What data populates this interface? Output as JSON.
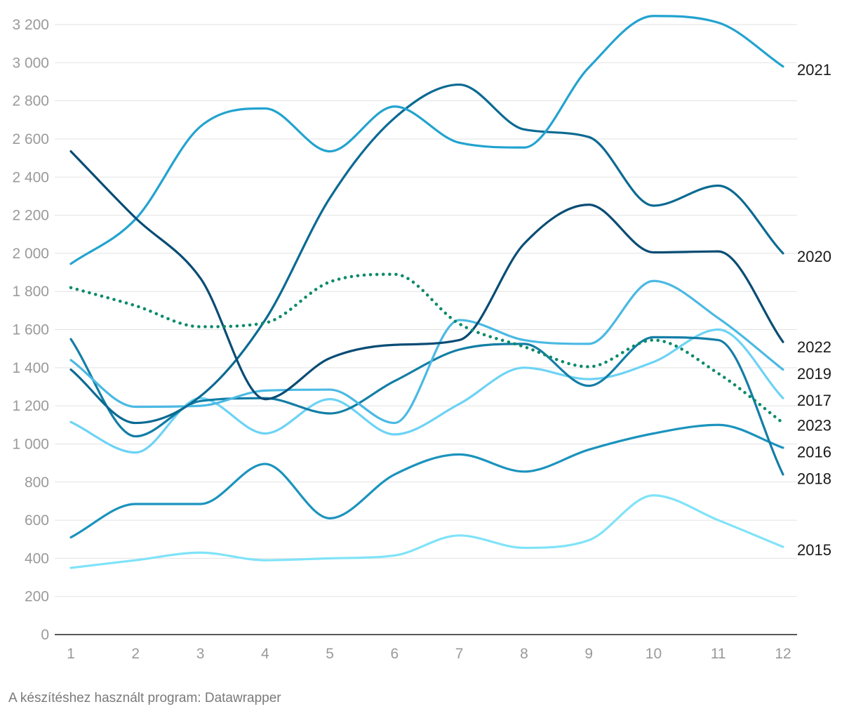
{
  "chart_data": {
    "type": "line",
    "curve": "smooth",
    "x": [
      1,
      2,
      3,
      4,
      5,
      6,
      7,
      8,
      9,
      10,
      11,
      12
    ],
    "xlim": [
      1,
      12
    ],
    "ylim": [
      0,
      3200
    ],
    "y_ticks": [
      0,
      200,
      400,
      600,
      800,
      1000,
      1200,
      1400,
      1600,
      1800,
      2000,
      2200,
      2400,
      2600,
      2800,
      3000,
      3200
    ],
    "y_tick_labels": [
      "0",
      "200",
      "400",
      "600",
      "800",
      "1 000",
      "1 200",
      "1 400",
      "1 600",
      "1 800",
      "2 000",
      "2 200",
      "2 400",
      "2 600",
      "2 800",
      "3 000",
      "3 200"
    ],
    "x_tick_labels": [
      "1",
      "2",
      "3",
      "4",
      "5",
      "6",
      "7",
      "8",
      "9",
      "10",
      "11",
      "12"
    ],
    "grid": "horizontal",
    "legend": "direct labels at right end of each line",
    "series": [
      {
        "name": "2015",
        "color": "#7fe3f8",
        "style": "solid",
        "values": [
          350,
          390,
          430,
          390,
          400,
          415,
          520,
          455,
          495,
          730,
          600,
          460
        ]
      },
      {
        "name": "2016",
        "color": "#1b93bd",
        "style": "solid",
        "values": [
          510,
          685,
          685,
          895,
          610,
          840,
          945,
          855,
          970,
          1055,
          1100,
          980
        ]
      },
      {
        "name": "2017",
        "color": "#6dd3f5",
        "style": "solid",
        "values": [
          1115,
          955,
          1240,
          1055,
          1235,
          1050,
          1210,
          1400,
          1340,
          1430,
          1600,
          1240
        ]
      },
      {
        "name": "2018",
        "color": "#137ea6",
        "style": "solid",
        "values": [
          1550,
          1040,
          1225,
          1240,
          1160,
          1330,
          1495,
          1525,
          1305,
          1560,
          1545,
          840
        ]
      },
      {
        "name": "2019",
        "color": "#4ab9e3",
        "style": "solid",
        "values": [
          1440,
          1195,
          1200,
          1280,
          1285,
          1110,
          1650,
          1545,
          1525,
          1855,
          1660,
          1390
        ]
      },
      {
        "name": "2020",
        "color": "#0b6a92",
        "style": "solid",
        "values": [
          1390,
          1110,
          1250,
          1650,
          2290,
          2710,
          2885,
          2650,
          2610,
          2250,
          2355,
          2000
        ]
      },
      {
        "name": "2021",
        "color": "#22a3cf",
        "style": "solid",
        "values": [
          1945,
          2180,
          2665,
          2760,
          2535,
          2770,
          2580,
          2555,
          2975,
          3245,
          3210,
          2980
        ]
      },
      {
        "name": "2022",
        "color": "#084c74",
        "style": "solid",
        "values": [
          2535,
          2185,
          1870,
          1235,
          1450,
          1520,
          1545,
          2050,
          2255,
          2005,
          2010,
          1535
        ]
      },
      {
        "name": "2023",
        "color": "#0c8a6a",
        "style": "dotted",
        "values": [
          1820,
          1725,
          1615,
          1635,
          1850,
          1890,
          1630,
          1510,
          1405,
          1545,
          1370,
          1110
        ]
      }
    ],
    "end_labels": [
      {
        "text": "2021",
        "series": "2021",
        "label_value": 2965
      },
      {
        "text": "2020",
        "series": "2020",
        "label_value": 1985
      },
      {
        "text": "2022",
        "series": "2022",
        "label_value": 1510
      },
      {
        "text": "2019",
        "series": "2019",
        "label_value": 1370
      },
      {
        "text": "2017",
        "series": "2017",
        "label_value": 1230
      },
      {
        "text": "2023",
        "series": "2023",
        "label_value": 1100
      },
      {
        "text": "2016",
        "series": "2016",
        "label_value": 960
      },
      {
        "text": "2018",
        "series": "2018",
        "label_value": 820
      },
      {
        "text": "2015",
        "series": "2015",
        "label_value": 445
      }
    ]
  },
  "footer": {
    "credit": "A készítéshez használt program: Datawrapper"
  }
}
